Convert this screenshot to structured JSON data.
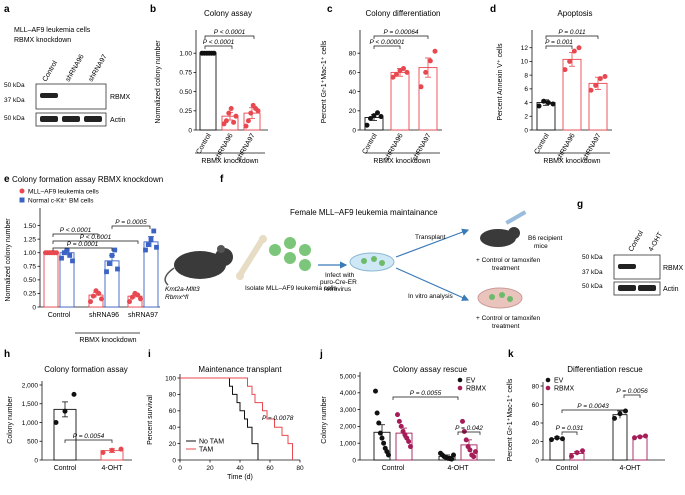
{
  "panels": {
    "a": {
      "label": "a",
      "title1": "MLL–AF9 leukemia cells",
      "title2": "RBMX knockdown",
      "lanes": [
        "Control",
        "shRNA96",
        "shRNA97"
      ],
      "mw": [
        "50 kDa",
        "37 kDa",
        "50 kDa"
      ],
      "bands": [
        "RBMX",
        "Actin"
      ]
    },
    "b": {
      "label": "b",
      "group_label": "RBMX knockdown"
    },
    "c": {
      "label": "c",
      "group_label": "RBMX knockdown"
    },
    "d": {
      "label": "d",
      "group_label": "RBMX knockdown"
    },
    "e": {
      "label": "e",
      "title": "Colony formation assay RBMX knockdown",
      "legend": [
        "MLL–AF9 leukemia cells",
        "Normal c-Kit⁺ BM cells"
      ],
      "group_label": "RBMX knockdown"
    },
    "f": {
      "label": "f",
      "title": "Female MLL–AF9 leukemia maintainance",
      "mouse_label1": "Kmt2a-Mllt3",
      "mouse_label2": "Rbmx^fl",
      "isolate": "Isolate MLL–AF9 leukemia cells",
      "infect1": "Infect with",
      "infect2": "puro-Cre-ER",
      "infect3": "retrovirus",
      "transplant": "Transplant",
      "recipient1": "B6 recipient",
      "recipient2": "mice",
      "treat_a1": "+ Control or tamoxifen",
      "treat_a2": "treatment",
      "invitro": "In vitro analysis",
      "treat_b1": "+ Control or tamoxifen",
      "treat_b2": "treatment"
    },
    "g": {
      "label": "g",
      "lanes": [
        "Control",
        "4-OHT"
      ],
      "mw": [
        "50 kDa",
        "37 kDa",
        "50 kDa"
      ],
      "bands": [
        "RBMX",
        "Actin"
      ]
    },
    "h": {
      "label": "h"
    },
    "i": {
      "label": "i"
    },
    "j": {
      "label": "j"
    },
    "k": {
      "label": "k"
    }
  },
  "colors": {
    "red": "#e8484f",
    "pink": "#f08a8a",
    "blue": "#3b63c4",
    "maroon": "#a51c58",
    "black": "#111111"
  },
  "chart_data": [
    {
      "id": "b",
      "type": "bar",
      "title": "Colony assay",
      "ylabel": "Normalized colony number",
      "ylim": [
        0,
        1.25
      ],
      "yticks": [
        0,
        0.25,
        0.5,
        0.75,
        1.0
      ],
      "ytick_labels": [
        "0",
        "0.25",
        "0.50",
        "0.75",
        "1.00"
      ],
      "categories": [
        "Control",
        "shRNA96",
        "shRNA97"
      ],
      "values": [
        1.0,
        0.18,
        0.22
      ],
      "errors": [
        0,
        0.05,
        0.07
      ],
      "points": [
        [
          1,
          1,
          1,
          1,
          1,
          1
        ],
        [
          0.08,
          0.12,
          0.22,
          0.28,
          0.1,
          0.18
        ],
        [
          0.05,
          0.12,
          0.22,
          0.32,
          0.28,
          0.25
        ]
      ],
      "annotations": [
        "P < 0.0001",
        "P < 0.0001"
      ]
    },
    {
      "id": "c",
      "type": "bar",
      "title": "Colony differentiation",
      "ylabel": "Percent Gr-1⁺Mac-1⁺ cells",
      "ylim": [
        0,
        100
      ],
      "yticks": [
        0,
        20,
        40,
        60,
        80
      ],
      "ytick_labels": [
        "0",
        "20",
        "40",
        "60",
        "80"
      ],
      "categories": [
        "Control",
        "shRNA96",
        "shRNA97"
      ],
      "values": [
        13,
        60,
        65
      ],
      "errors": [
        3,
        4,
        10
      ],
      "points": [
        [
          5,
          12,
          15,
          18,
          14
        ],
        [
          55,
          58,
          62,
          64,
          60
        ],
        [
          45,
          60,
          72,
          82
        ]
      ],
      "annotations": [
        "P = 0.00064",
        "P < 0.00001"
      ]
    },
    {
      "id": "d",
      "type": "bar",
      "title": "Apoptosis",
      "ylabel": "Percent Annexin V⁺ cells",
      "ylim": [
        0,
        14
      ],
      "yticks": [
        0,
        2,
        4,
        6,
        8,
        10,
        12
      ],
      "ytick_labels": [
        "0",
        "2",
        "4",
        "6",
        "8",
        "10",
        "12"
      ],
      "categories": [
        "Control",
        "shRNA96",
        "shRNA97"
      ],
      "values": [
        4.0,
        10.3,
        6.8
      ],
      "errors": [
        0.4,
        1.0,
        0.9
      ],
      "points": [
        [
          3.5,
          4.2,
          4.0,
          3.8
        ],
        [
          8.8,
          10.0,
          11.5,
          12.0
        ],
        [
          5.8,
          6.5,
          7.5,
          7.8
        ]
      ],
      "annotations": [
        "P = 0.011",
        "P = 0.001"
      ]
    },
    {
      "id": "e",
      "type": "bar",
      "ylabel": "Normalized colony number",
      "ylim": [
        0,
        1.75
      ],
      "yticks": [
        0,
        0.25,
        0.5,
        0.75,
        1.0,
        1.25,
        1.5
      ],
      "ytick_labels": [
        "0",
        "0.25",
        "0.50",
        "0.75",
        "1.00",
        "1.25",
        "1.50"
      ],
      "categories": [
        "Control",
        "shRNA96",
        "shRNA97"
      ],
      "series": [
        {
          "name": "MLL–AF9 leukemia cells",
          "values": [
            1.0,
            0.22,
            0.2
          ],
          "errors": [
            0.02,
            0.05,
            0.04
          ],
          "points": [
            [
              1,
              1,
              1,
              1,
              1,
              1
            ],
            [
              0.1,
              0.2,
              0.3,
              0.25,
              0.15
            ],
            [
              0.1,
              0.18,
              0.25,
              0.22,
              0.15
            ]
          ]
        },
        {
          "name": "Normal c-Kit⁺ BM cells",
          "values": [
            1.0,
            0.85,
            1.2
          ],
          "errors": [
            0.05,
            0.1,
            0.1
          ],
          "points": [
            [
              0.9,
              1,
              1.05,
              0.95,
              0.85
            ],
            [
              0.65,
              0.8,
              0.95,
              1.05,
              0.7
            ],
            [
              1.05,
              1.15,
              1.25,
              1.4,
              1.1
            ]
          ]
        }
      ],
      "annotations": [
        "P < 0.0001",
        "P < 0.0001",
        "P = 0.0001",
        "P = 0.0005"
      ]
    },
    {
      "id": "h",
      "type": "bar",
      "title": "Colony formation assay",
      "ylabel": "Colony number",
      "ylim": [
        0,
        2000
      ],
      "yticks": [
        0,
        500,
        1000,
        1500,
        2000
      ],
      "ytick_labels": [
        "0",
        "500",
        "1,000",
        "1,500",
        "2,000"
      ],
      "categories": [
        "Control",
        "4-OHT"
      ],
      "values": [
        1350,
        250
      ],
      "errors": [
        200,
        50
      ],
      "points": [
        [
          1000,
          1300,
          1750
        ],
        [
          200,
          260,
          290
        ]
      ],
      "annotations": [
        "P = 0.0054"
      ]
    },
    {
      "id": "i",
      "type": "line",
      "title": "Maintenance transplant",
      "ylabel": "Percent survival",
      "xlabel": "Time (d)",
      "xlim": [
        0,
        80
      ],
      "ylim": [
        0,
        100
      ],
      "xticks": [
        0,
        20,
        40,
        60,
        80
      ],
      "yticks": [
        0,
        20,
        40,
        60,
        80,
        100
      ],
      "series": [
        {
          "name": "No TAM",
          "x": [
            0,
            30,
            33,
            35,
            38,
            40,
            43,
            45,
            48,
            52
          ],
          "y": [
            100,
            100,
            90,
            80,
            70,
            60,
            50,
            40,
            20,
            0
          ]
        },
        {
          "name": "TAM",
          "x": [
            0,
            40,
            45,
            48,
            50,
            55,
            58,
            63,
            68,
            72,
            75
          ],
          "y": [
            100,
            100,
            90,
            80,
            70,
            60,
            50,
            40,
            30,
            20,
            0
          ]
        }
      ],
      "annotations": [
        "P = 0.0078"
      ]
    },
    {
      "id": "j",
      "type": "bar",
      "title": "Colony assay rescue",
      "ylabel": "Colony number",
      "ylim": [
        0,
        5000
      ],
      "yticks": [
        0,
        1000,
        2000,
        3000,
        4000,
        5000
      ],
      "ytick_labels": [
        "0",
        "1,000",
        "2,000",
        "3,000",
        "4,000",
        "5,000"
      ],
      "categories": [
        "Control",
        "4-OHT"
      ],
      "series": [
        {
          "name": "EV",
          "values": [
            1650,
            220
          ],
          "errors": [
            450,
            80
          ],
          "points": [
            [
              4100,
              2800,
              2200,
              1600,
              1300,
              1000,
              700,
              500,
              300
            ],
            [
              400,
              300,
              200,
              150,
              100,
              80,
              50,
              300
            ]
          ]
        },
        {
          "name": "RBMX",
          "values": [
            1600,
            900
          ],
          "errors": [
            300,
            300
          ],
          "points": [
            [
              2700,
              2300,
              2000,
              1700,
              1500,
              1300,
              1100,
              800
            ],
            [
              2300,
              1700,
              1200,
              800,
              600,
              300,
              200,
              500
            ]
          ]
        }
      ],
      "annotations": [
        "P = 0.0055",
        "P = 0.042"
      ]
    },
    {
      "id": "k",
      "type": "bar",
      "title": "Differentiation rescue",
      "ylabel": "Percent Gr-1⁺Mac-1⁺ cells",
      "ylim": [
        0,
        80
      ],
      "yticks": [
        0,
        20,
        40,
        60,
        80
      ],
      "ytick_labels": [
        "0",
        "20",
        "40",
        "60",
        "80"
      ],
      "categories": [
        "Control",
        "4-OHT"
      ],
      "series": [
        {
          "name": "EV",
          "values": [
            23,
            49
          ],
          "errors": [
            2,
            4
          ],
          "points": [
            [
              22,
              24,
              23
            ],
            [
              45,
              50,
              53
            ]
          ]
        },
        {
          "name": "RBMX",
          "values": [
            7,
            25
          ],
          "errors": [
            2,
            1
          ],
          "points": [
            [
              4,
              8,
              10
            ],
            [
              24,
              25,
              26
            ]
          ]
        }
      ],
      "annotations": [
        "P = 0.031",
        "P = 0.0043",
        "P = 0.0056"
      ]
    }
  ]
}
